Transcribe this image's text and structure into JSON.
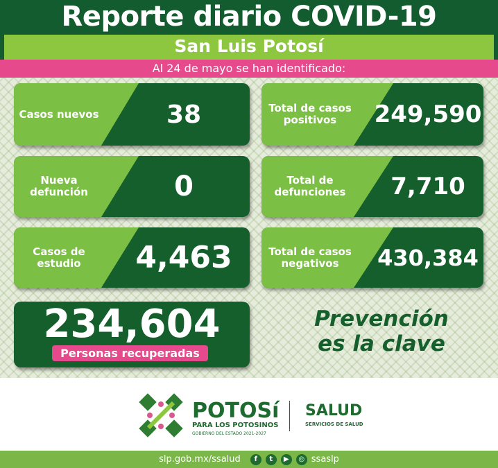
{
  "header": {
    "title": "Reporte diario COVID-19",
    "region": "San Luis Potosí",
    "date_line": "Al 24 de mayo se han identificado:"
  },
  "cards": [
    {
      "label": "Casos nuevos",
      "value": "38"
    },
    {
      "label": "Total de casos positivos",
      "value": "249,590"
    },
    {
      "label": "Nueva defunción",
      "value": "0"
    },
    {
      "label": "Total de defunciones",
      "value": "7,710"
    },
    {
      "label": "Casos de estudio",
      "value": "4,463"
    },
    {
      "label": "Total de casos negativos",
      "value": "430,384"
    }
  ],
  "recovered": {
    "value": "234,604",
    "label": "Personas recuperadas"
  },
  "slogan": {
    "line1": "Prevención",
    "line2": "es la clave"
  },
  "logos": {
    "potosi": "POTOSí",
    "potosi_tagline": "PARA LOS POTOSINOS",
    "gobierno": "GOBIERNO DEL ESTADO 2021-2027",
    "salud": "SALUD",
    "servicios": "SERVICIOS DE SALUD"
  },
  "footer": {
    "website": "slp.gob.mx/ssalud",
    "handle": "ssaslp",
    "social_icons": [
      "facebook-icon",
      "twitter-icon",
      "youtube-icon",
      "instagram-icon"
    ]
  },
  "colors": {
    "dark_green": "#135c2f",
    "lime": "#8dc63f",
    "pink": "#e64a8c",
    "footer_green": "#7ab648"
  }
}
